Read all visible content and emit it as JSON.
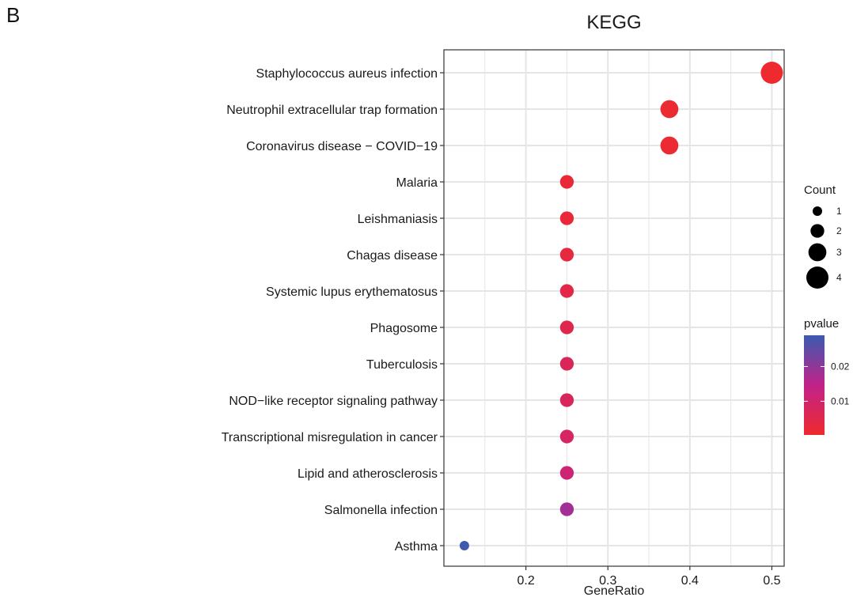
{
  "panel_label": "B",
  "chart_data": {
    "type": "scatter",
    "subtype": "dot-plot",
    "title": "KEGG",
    "xlabel": "GeneRatio",
    "ylabel": "",
    "xlim": [
      0.1,
      0.515
    ],
    "x_ticks": [
      0.2,
      0.3,
      0.4,
      0.5
    ],
    "x_tick_labels": [
      "0.2",
      "0.3",
      "0.4",
      "0.5"
    ],
    "grid": true,
    "legend_position": "right",
    "points": [
      {
        "term": "Staphylococcus aureus infection",
        "gene_ratio": 0.5,
        "count": 4,
        "pvalue": 0.0004
      },
      {
        "term": "Neutrophil extracellular trap formation",
        "gene_ratio": 0.375,
        "count": 3,
        "pvalue": 0.0008
      },
      {
        "term": "Coronavirus disease − COVID−19",
        "gene_ratio": 0.375,
        "count": 3,
        "pvalue": 0.001
      },
      {
        "term": "Malaria",
        "gene_ratio": 0.25,
        "count": 2,
        "pvalue": 0.0015
      },
      {
        "term": "Leishmaniasis",
        "gene_ratio": 0.25,
        "count": 2,
        "pvalue": 0.002
      },
      {
        "term": "Chagas disease",
        "gene_ratio": 0.25,
        "count": 2,
        "pvalue": 0.0028
      },
      {
        "term": "Systemic lupus erythematosus",
        "gene_ratio": 0.25,
        "count": 2,
        "pvalue": 0.0045
      },
      {
        "term": "Phagosome",
        "gene_ratio": 0.25,
        "count": 2,
        "pvalue": 0.0052
      },
      {
        "term": "Tuberculosis",
        "gene_ratio": 0.25,
        "count": 2,
        "pvalue": 0.007
      },
      {
        "term": "NOD−like receptor signaling pathway",
        "gene_ratio": 0.25,
        "count": 2,
        "pvalue": 0.0075
      },
      {
        "term": "Transcriptional misregulation in cancer",
        "gene_ratio": 0.25,
        "count": 2,
        "pvalue": 0.0085
      },
      {
        "term": "Lipid and atherosclerosis",
        "gene_ratio": 0.25,
        "count": 2,
        "pvalue": 0.011
      },
      {
        "term": "Salmonella infection",
        "gene_ratio": 0.25,
        "count": 2,
        "pvalue": 0.018
      },
      {
        "term": "Asthma",
        "gene_ratio": 0.125,
        "count": 1,
        "pvalue": 0.0285
      }
    ],
    "size_legend": {
      "title": "Count",
      "values": [
        1,
        2,
        3,
        4
      ],
      "labels": [
        "1",
        "2",
        "3",
        "4"
      ]
    },
    "color_legend": {
      "title": "pvalue",
      "range": [
        0.0003,
        0.029
      ],
      "ticks": [
        0.01,
        0.02
      ],
      "tick_labels": [
        "0.01",
        "0.02"
      ],
      "colors": {
        "low": "#ee2a2e",
        "mid": "#c2228a",
        "high": "#3a5bb0"
      }
    },
    "colors": {
      "panel_background": "#ffffff",
      "grid": "#e5e5e5",
      "panel_border": "#333333",
      "text": "#1a1a1a"
    }
  }
}
